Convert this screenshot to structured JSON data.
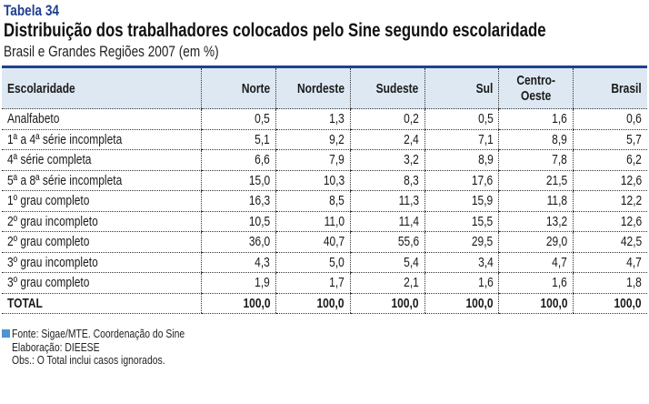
{
  "label": "Tabela 34",
  "title": "Distribuição dos trabalhadores colocados pelo Sine segundo escolaridade",
  "subtitle": "Brasil e Grandes Regiões 2007 (em %)",
  "table": {
    "headers": [
      "Escolaridade",
      "Norte",
      "Nordeste",
      "Sudeste",
      "Sul",
      "Centro-\nOeste",
      "Brasil"
    ],
    "rows": [
      [
        "Analfabeto",
        "0,5",
        "1,3",
        "0,2",
        "0,5",
        "1,6",
        "0,6"
      ],
      [
        "1ª a 4ª série incompleta",
        "5,1",
        "9,2",
        "2,4",
        "7,1",
        "8,9",
        "5,7"
      ],
      [
        "4ª série completa",
        "6,6",
        "7,9",
        "3,2",
        "8,9",
        "7,8",
        "6,2"
      ],
      [
        "5ª a 8ª série incompleta",
        "15,0",
        "10,3",
        "8,3",
        "17,6",
        "21,5",
        "12,6"
      ],
      [
        "1º grau completo",
        "16,3",
        "8,5",
        "11,3",
        "15,9",
        "11,8",
        "12,2"
      ],
      [
        "2º grau incompleto",
        "10,5",
        "11,0",
        "11,4",
        "15,5",
        "13,2",
        "12,6"
      ],
      [
        "2º grau completo",
        "36,0",
        "40,7",
        "55,6",
        "29,5",
        "29,0",
        "42,5"
      ],
      [
        "3º grau incompleto",
        "4,3",
        "5,0",
        "5,4",
        "3,4",
        "4,7",
        "4,7"
      ],
      [
        "3º grau completo",
        "1,9",
        "1,7",
        "2,1",
        "1,6",
        "1,6",
        "1,8"
      ]
    ],
    "total": [
      "TOTAL",
      "100,0",
      "100,0",
      "100,0",
      "100,0",
      "100,0",
      "100,0"
    ]
  },
  "footer": {
    "source": "Fonte: Sigae/MTE. Coordenação do Sine",
    "elaboration": "Elaboração: DIEESE",
    "note": "Obs.: O Total inclui casos ignorados."
  },
  "colors": {
    "accent": "#1f3f8f",
    "header_bg": "#dde8f3",
    "marker": "#4f93d2"
  }
}
